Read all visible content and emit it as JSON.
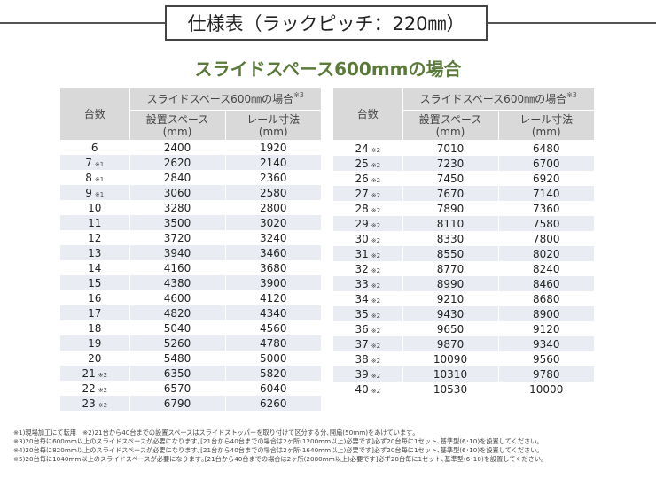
{
  "title": "仕様表（ラックピッチ：220㎜）",
  "subtitle": "スライドスペース600mmの場合",
  "table_header": {
    "units": "台数",
    "group": "スライドスペース600㎜の場合",
    "group_note": "※3",
    "space": "設置スペース",
    "space_unit": "(mm)",
    "rail": "レール寸法",
    "rail_unit": "(mm)"
  },
  "left_rows": [
    {
      "units": "6",
      "note": "",
      "space": "2400",
      "rail": "1920"
    },
    {
      "units": "7",
      "note": "※1",
      "space": "2620",
      "rail": "2140"
    },
    {
      "units": "8",
      "note": "※1",
      "space": "2840",
      "rail": "2360"
    },
    {
      "units": "9",
      "note": "※1",
      "space": "3060",
      "rail": "2580"
    },
    {
      "units": "10",
      "note": "",
      "space": "3280",
      "rail": "2800"
    },
    {
      "units": "11",
      "note": "",
      "space": "3500",
      "rail": "3020"
    },
    {
      "units": "12",
      "note": "",
      "space": "3720",
      "rail": "3240"
    },
    {
      "units": "13",
      "note": "",
      "space": "3940",
      "rail": "3460"
    },
    {
      "units": "14",
      "note": "",
      "space": "4160",
      "rail": "3680"
    },
    {
      "units": "15",
      "note": "",
      "space": "4380",
      "rail": "3900"
    },
    {
      "units": "16",
      "note": "",
      "space": "4600",
      "rail": "4120"
    },
    {
      "units": "17",
      "note": "",
      "space": "4820",
      "rail": "4340"
    },
    {
      "units": "18",
      "note": "",
      "space": "5040",
      "rail": "4560"
    },
    {
      "units": "19",
      "note": "",
      "space": "5260",
      "rail": "4780"
    },
    {
      "units": "20",
      "note": "",
      "space": "5480",
      "rail": "5000"
    },
    {
      "units": "21",
      "note": "※2",
      "space": "6350",
      "rail": "5820"
    },
    {
      "units": "22",
      "note": "※2",
      "space": "6570",
      "rail": "6040"
    },
    {
      "units": "23",
      "note": "※2",
      "space": "6790",
      "rail": "6260"
    }
  ],
  "right_rows": [
    {
      "units": "24",
      "note": "※2",
      "space": "7010",
      "rail": "6480"
    },
    {
      "units": "25",
      "note": "※2",
      "space": "7230",
      "rail": "6700"
    },
    {
      "units": "26",
      "note": "※2",
      "space": "7450",
      "rail": "6920"
    },
    {
      "units": "27",
      "note": "※2",
      "space": "7670",
      "rail": "7140"
    },
    {
      "units": "28",
      "note": "※2",
      "space": "7890",
      "rail": "7360"
    },
    {
      "units": "29",
      "note": "※2",
      "space": "8110",
      "rail": "7580"
    },
    {
      "units": "30",
      "note": "※2",
      "space": "8330",
      "rail": "7800"
    },
    {
      "units": "31",
      "note": "※2",
      "space": "8550",
      "rail": "8020"
    },
    {
      "units": "32",
      "note": "※2",
      "space": "8770",
      "rail": "8240"
    },
    {
      "units": "33",
      "note": "※2",
      "space": "8990",
      "rail": "8460"
    },
    {
      "units": "34",
      "note": "※2",
      "space": "9210",
      "rail": "8680"
    },
    {
      "units": "35",
      "note": "※2",
      "space": "9430",
      "rail": "8900"
    },
    {
      "units": "36",
      "note": "※2",
      "space": "9650",
      "rail": "9120"
    },
    {
      "units": "37",
      "note": "※2",
      "space": "9870",
      "rail": "9340"
    },
    {
      "units": "38",
      "note": "※2",
      "space": "10090",
      "rail": "9560"
    },
    {
      "units": "39",
      "note": "※2",
      "space": "10310",
      "rail": "9780"
    },
    {
      "units": "40",
      "note": "※2",
      "space": "10530",
      "rail": "10000"
    }
  ],
  "notes": [
    "※1)現場加工にて転用　※2)21台から40台までの設置スペースはスライドストッパーを取り付けて区分する分､開扇(50mm)をあけています｡",
    "※3)20台毎に600mm以上のスライドスペースが必要になります｡[21台から40台までの場合は2ヶ所(1200mm以上)必要です]必ず20台毎に1セット､基準型(6･10)を設置してください｡",
    "※4)20台毎に820mm以上のスライドスペースが必要になります｡[21台から40台までの場合は2ヶ所(1640mm以上)必要です]必ず20台毎に1セット､基準型(6･10)を設置してください｡",
    "※5)20台毎に1040mm以上のスライドスペースが必要になります｡[21台から40台までの場合は2ヶ所(2080mm以上)必要です]必ず20台毎に1セット､基準型(6･10)を設置してください｡"
  ],
  "colors": {
    "subtitle": "#5a7a3a",
    "header_bg": "#d9d9d9",
    "stripe_bg": "#e9edf3"
  }
}
